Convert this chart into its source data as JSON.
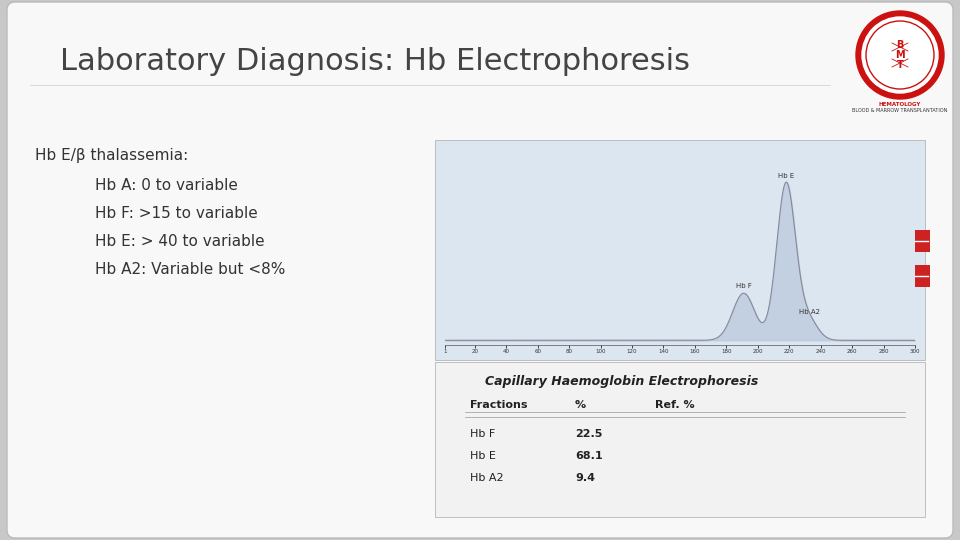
{
  "title": "Laboratory Diagnosis: Hb Electrophoresis",
  "title_fontsize": 22,
  "title_color": "#444444",
  "title_font": "sans-serif",
  "slide_bg": "#f8f8f8",
  "outer_bg": "#c8c8c8",
  "heading_text": "Hb E/β thalassemia:",
  "heading_fontsize": 11,
  "heading_color": "#333333",
  "bullets": [
    "Hb A: 0 to variable",
    "Hb F: >15 to variable",
    "Hb E: > 40 to variable",
    "Hb A2: Variable but <8%"
  ],
  "bullet_fontsize": 11,
  "bullet_color": "#333333",
  "fractions": [
    "Hb F",
    "Hb E",
    "Hb A2"
  ],
  "percentages": [
    "22.5",
    "68.1",
    "9.4"
  ],
  "strip_colors": [
    "#cc2222",
    "#cc2222"
  ],
  "chart_bg": "#e8edf5",
  "table_title": "Capillary Haemoglobin Electrophoresis",
  "xtick_labels": [
    "1",
    "20",
    "40",
    "60",
    "80",
    "100",
    "120",
    "140",
    "160",
    "180",
    "200",
    "220",
    "240",
    "260",
    "280",
    "300"
  ],
  "xtick_vals": [
    1,
    20,
    40,
    60,
    80,
    100,
    120,
    140,
    160,
    180,
    200,
    220,
    240,
    260,
    280,
    300
  ]
}
